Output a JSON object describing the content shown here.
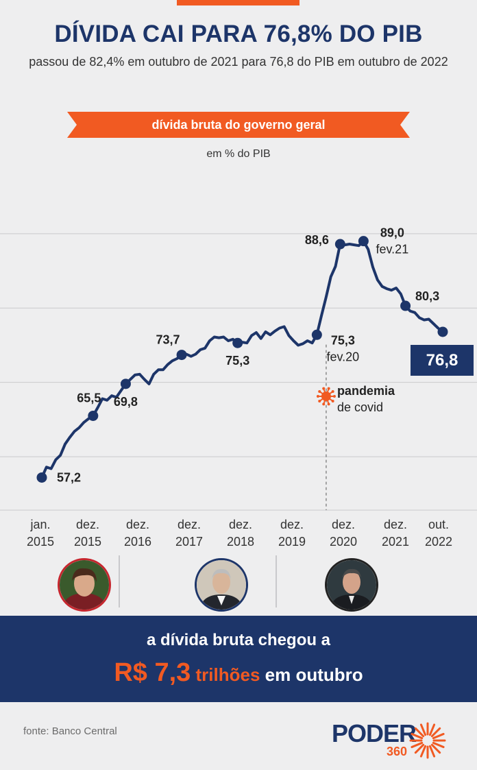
{
  "header": {
    "title": "DÍVIDA CAI PARA 76,8% DO PIB",
    "subtitle": "passou de 82,4% em outubro de 2021 para 76,8 do PIB em outubro de 2022",
    "ribbon": "dívida bruta do governo geral",
    "unit": "em % do PIB"
  },
  "colors": {
    "navy": "#1d3569",
    "orange": "#f15a22",
    "background": "#eeeeef"
  },
  "chart_data": {
    "type": "line",
    "title": "dívida bruta do governo geral",
    "ylabel": "em % do PIB",
    "ylim": [
      53,
      91
    ],
    "grid": true,
    "x_tick_labels": [
      {
        "line1": "jan.",
        "line2": "2015"
      },
      {
        "line1": "dez.",
        "line2": "2015"
      },
      {
        "line1": "dez.",
        "line2": "2016"
      },
      {
        "line1": "dez.",
        "line2": "2017"
      },
      {
        "line1": "dez.",
        "line2": "2018"
      },
      {
        "line1": "dez.",
        "line2": "2019"
      },
      {
        "line1": "dez.",
        "line2": "2020"
      },
      {
        "line1": "dez.",
        "line2": "2021"
      },
      {
        "line1": "out.",
        "line2": "2022"
      }
    ],
    "series": [
      {
        "values": [
          57.2,
          58.6,
          58.4,
          59.6,
          60.2,
          61.7,
          62.6,
          63.4,
          63.9,
          64.6,
          65.1,
          65.5,
          66.6,
          67.8,
          67.6,
          68.2,
          68.0,
          68.9,
          69.8,
          70.4,
          71.0,
          71.1,
          70.4,
          69.8,
          71.1,
          71.7,
          71.7,
          72.4,
          72.9,
          73.2,
          73.7,
          73.8,
          73.5,
          73.8,
          74.4,
          74.6,
          75.6,
          76.1,
          76.0,
          76.1,
          75.6,
          75.8,
          75.3,
          75.4,
          75.3,
          76.3,
          76.7,
          75.9,
          76.8,
          76.4,
          76.9,
          77.3,
          77.5,
          76.3,
          75.6,
          75.0,
          75.2,
          75.6,
          75.3,
          76.4,
          79.0,
          81.5,
          84.2,
          85.6,
          88.6,
          88.5,
          88.6,
          88.5,
          88.4,
          89.0,
          87.9,
          85.5,
          83.8,
          82.9,
          82.6,
          82.4,
          82.7,
          81.9,
          80.3,
          79.6,
          79.4,
          78.7,
          78.4,
          78.5,
          77.9,
          77.3,
          76.8
        ]
      }
    ],
    "annotations": [
      {
        "value": "57,2",
        "sub": ""
      },
      {
        "value": "65,5",
        "sub": ""
      },
      {
        "value": "69,8",
        "sub": ""
      },
      {
        "value": "73,7",
        "sub": ""
      },
      {
        "value": "75,3",
        "sub": ""
      },
      {
        "value": "88,6",
        "sub": ""
      },
      {
        "value": "89,0",
        "sub": "fev.21"
      },
      {
        "value": "80,3",
        "sub": ""
      },
      {
        "value": "75,3",
        "sub": "fev.20"
      }
    ],
    "event": {
      "line1": "pandemia",
      "line2": "de covid"
    },
    "last_value": "76,8"
  },
  "portraits": [
    {
      "icon": "portrait-dilma"
    },
    {
      "icon": "portrait-temer"
    },
    {
      "icon": "portrait-bolsonaro"
    }
  ],
  "banner": {
    "line1": "a dívida bruta chegou a",
    "amount": "R$ 7,3",
    "unit": "trilhões",
    "suffix": "em outubro"
  },
  "footer": {
    "source": "fonte: Banco Central",
    "logo_word": "PODER",
    "logo_number": "360"
  }
}
